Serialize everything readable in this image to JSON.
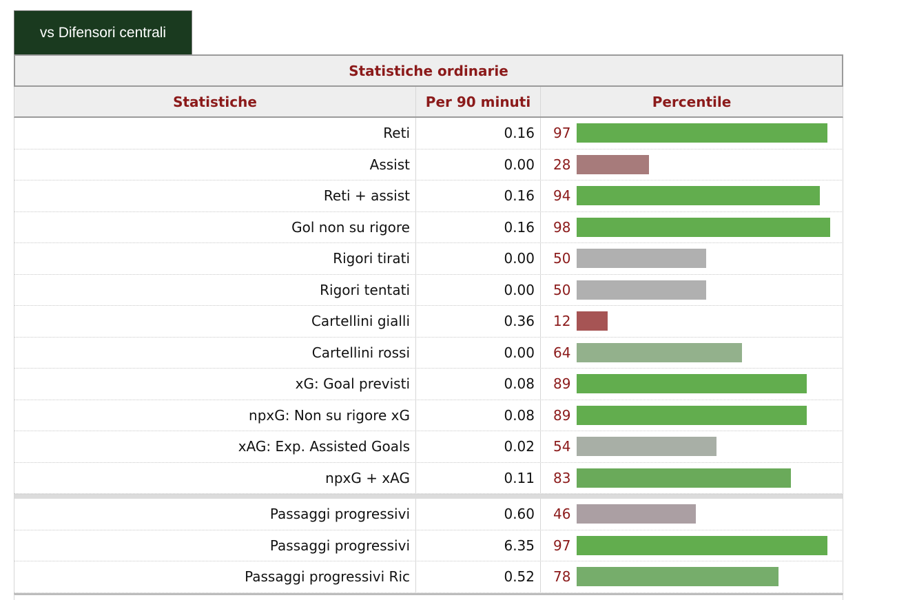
{
  "tab": {
    "label": "vs Difensori centrali"
  },
  "table": {
    "section_title": "Statistiche ordinarie",
    "headers": {
      "stat": "Statistiche",
      "per90": "Per 90 minuti",
      "percentile": "Percentile"
    },
    "groups": [
      {
        "rows": [
          {
            "label": "Reti",
            "per90": "0.16",
            "percentile": "97",
            "pct_value": 97,
            "bar_color": "#62ad4e"
          },
          {
            "label": "Assist",
            "per90": "0.00",
            "percentile": "28",
            "pct_value": 28,
            "bar_color": "#a77b7b"
          },
          {
            "label": "Reti + assist",
            "per90": "0.16",
            "percentile": "94",
            "pct_value": 94,
            "bar_color": "#62ad4e"
          },
          {
            "label": "Gol non su rigore",
            "per90": "0.16",
            "percentile": "98",
            "pct_value": 98,
            "bar_color": "#62ad4e"
          },
          {
            "label": "Rigori tirati",
            "per90": "0.00",
            "percentile": "50",
            "pct_value": 50,
            "bar_color": "#b0b0b0"
          },
          {
            "label": "Rigori tentati",
            "per90": "0.00",
            "percentile": "50",
            "pct_value": 50,
            "bar_color": "#b0b0b0"
          },
          {
            "label": "Cartellini gialli",
            "per90": "0.36",
            "percentile": "12",
            "pct_value": 12,
            "bar_color": "#a65454"
          },
          {
            "label": "Cartellini rossi",
            "per90": "0.00",
            "percentile": "64",
            "pct_value": 64,
            "bar_color": "#93b18c"
          },
          {
            "label": "xG: Goal previsti",
            "per90": "0.08",
            "percentile": "89",
            "pct_value": 89,
            "bar_color": "#62ad4e"
          },
          {
            "label": "npxG: Non su rigore xG",
            "per90": "0.08",
            "percentile": "89",
            "pct_value": 89,
            "bar_color": "#62ad4e"
          },
          {
            "label": "xAG: Exp. Assisted Goals",
            "per90": "0.02",
            "percentile": "54",
            "pct_value": 54,
            "bar_color": "#a8afa6"
          },
          {
            "label": "npxG + xAG",
            "per90": "0.11",
            "percentile": "83",
            "pct_value": 83,
            "bar_color": "#6aaa5a"
          }
        ]
      },
      {
        "rows": [
          {
            "label": "Passaggi progressivi",
            "per90": "0.60",
            "percentile": "46",
            "pct_value": 46,
            "bar_color": "#ab9fa3"
          },
          {
            "label": "Passaggi progressivi",
            "per90": "6.35",
            "percentile": "97",
            "pct_value": 97,
            "bar_color": "#62ad4e"
          },
          {
            "label": "Passaggi progressivi Ric",
            "per90": "0.52",
            "percentile": "78",
            "pct_value": 78,
            "bar_color": "#76ad6b"
          }
        ]
      }
    ]
  }
}
